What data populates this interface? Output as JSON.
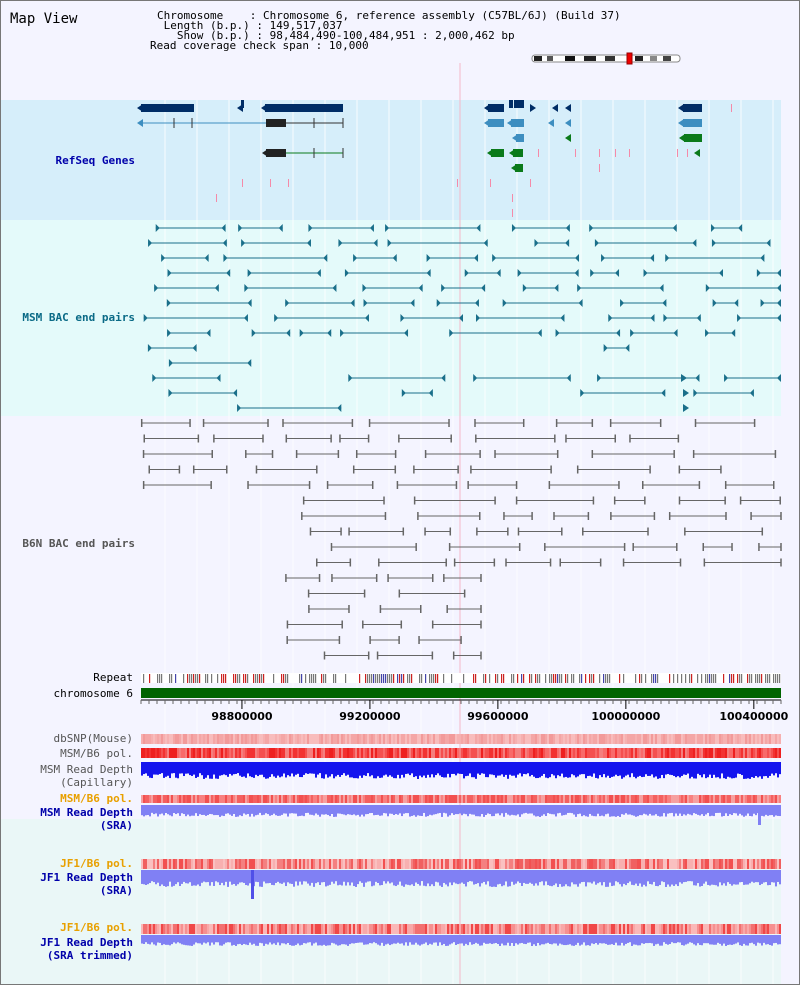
{
  "title": "Map View",
  "header": {
    "chromosome_key": "Chromosome",
    "chromosome_value": "Chromosome 6, reference assembly (C57BL/6J) (Build 37)",
    "length_key": "Length (b.p.)",
    "length_value": "149,517,037",
    "show_key": "Show (b.p.)",
    "show_value": "98,484,490-100,484,951 : 2,000,462 bp",
    "span_key": "Read coverage check span",
    "span_value": "10,000"
  },
  "tracks": {
    "refseq": "RefSeq Genes",
    "msm_bac": "MSM BAC end pairs",
    "b6n_bac": "B6N BAC end pairs",
    "repeat": "Repeat",
    "chromosome": "chromosome 6",
    "dbsnp": "dbSNP(Mouse)",
    "msm_b6_pol": "MSM/B6 pol.",
    "msm_depth_cap_1": "MSM Read Depth",
    "msm_depth_cap_2": "(Capillary)",
    "msm_b6_pol_sra": "MSM/B6 pol.",
    "msm_depth_sra_1": "MSM Read Depth",
    "msm_depth_sra_2": "(SRA)",
    "jf1_b6_pol": "JF1/B6 pol.",
    "jf1_depth_sra_1": "JF1 Read Depth",
    "jf1_depth_sra_2": "(SRA)",
    "jf1_b6_pol_trim": "JF1/B6 pol.",
    "jf1_depth_trim_1": "JF1 Read Depth",
    "jf1_depth_trim_2": "(SRA trimmed)"
  },
  "axis": {
    "ticks": [
      "98800000",
      "99200000",
      "99600000",
      "100000000",
      "100400000"
    ],
    "range": [
      98484490,
      100484951
    ]
  },
  "colors": {
    "refseq_bg": "#d6eefa",
    "msm_bg": "#e4fafa",
    "gene_dark": "#002d66",
    "gene_mid": "#3d8ec0",
    "gene_green": "#0a7a1a",
    "msm_line": "#1a6f8a",
    "b6n_line": "#666666",
    "chrom_green": "#006400",
    "depth_cap": "#1414ee",
    "depth_sra": "#8080f4",
    "label_blue": "#0000aa",
    "label_teal": "#0a6a86",
    "label_orange": "#e8a000"
  }
}
